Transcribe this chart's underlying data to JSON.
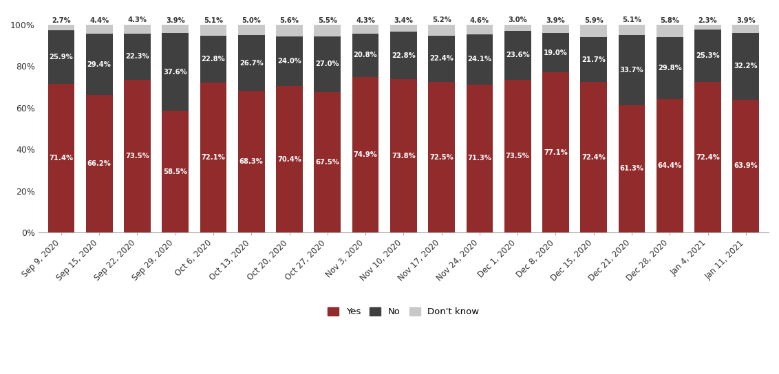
{
  "categories": [
    "Sep 9, 2020",
    "Sep 15, 2020",
    "Sep 22, 2020",
    "Sep 29, 2020",
    "Oct 6, 2020",
    "Oct 13, 2020",
    "Oct 20, 2020",
    "Oct 27, 2020",
    "Nov 3, 2020",
    "Nov 10, 2020",
    "Nov 17, 2020",
    "Nov 24, 2020",
    "Dec 1, 2020",
    "Dec 8, 2020",
    "Dec 15, 2020",
    "Dec 21, 2020",
    "Dec 28, 2020",
    "Jan 4, 2021",
    "Jan 11, 2021"
  ],
  "yes": [
    71.4,
    66.2,
    73.5,
    58.5,
    72.1,
    68.3,
    70.4,
    67.5,
    74.9,
    73.8,
    72.5,
    71.3,
    73.5,
    77.1,
    72.4,
    61.3,
    64.4,
    72.4,
    63.9
  ],
  "no": [
    25.9,
    29.4,
    22.3,
    37.6,
    22.8,
    26.7,
    24.0,
    27.0,
    20.8,
    22.8,
    22.4,
    24.1,
    23.6,
    19.0,
    21.7,
    33.7,
    29.8,
    25.3,
    32.2
  ],
  "dk": [
    2.7,
    4.4,
    4.3,
    3.9,
    5.1,
    5.0,
    5.6,
    5.5,
    4.3,
    3.4,
    5.2,
    4.6,
    3.0,
    3.9,
    5.9,
    5.1,
    5.8,
    2.3,
    3.9
  ],
  "yes_color": "#922B2B",
  "no_color": "#404040",
  "dk_color": "#C8C8C8",
  "background_color": "#FFFFFF",
  "yes_label": "Yes",
  "no_label": "No",
  "dk_label": "Don't know",
  "bar_width": 0.7,
  "ylim": [
    0,
    105
  ],
  "yticks": [
    0,
    20,
    40,
    60,
    80,
    100
  ],
  "ytick_labels": [
    "0%",
    "20%",
    "40%",
    "60%",
    "80%",
    "100%"
  ]
}
